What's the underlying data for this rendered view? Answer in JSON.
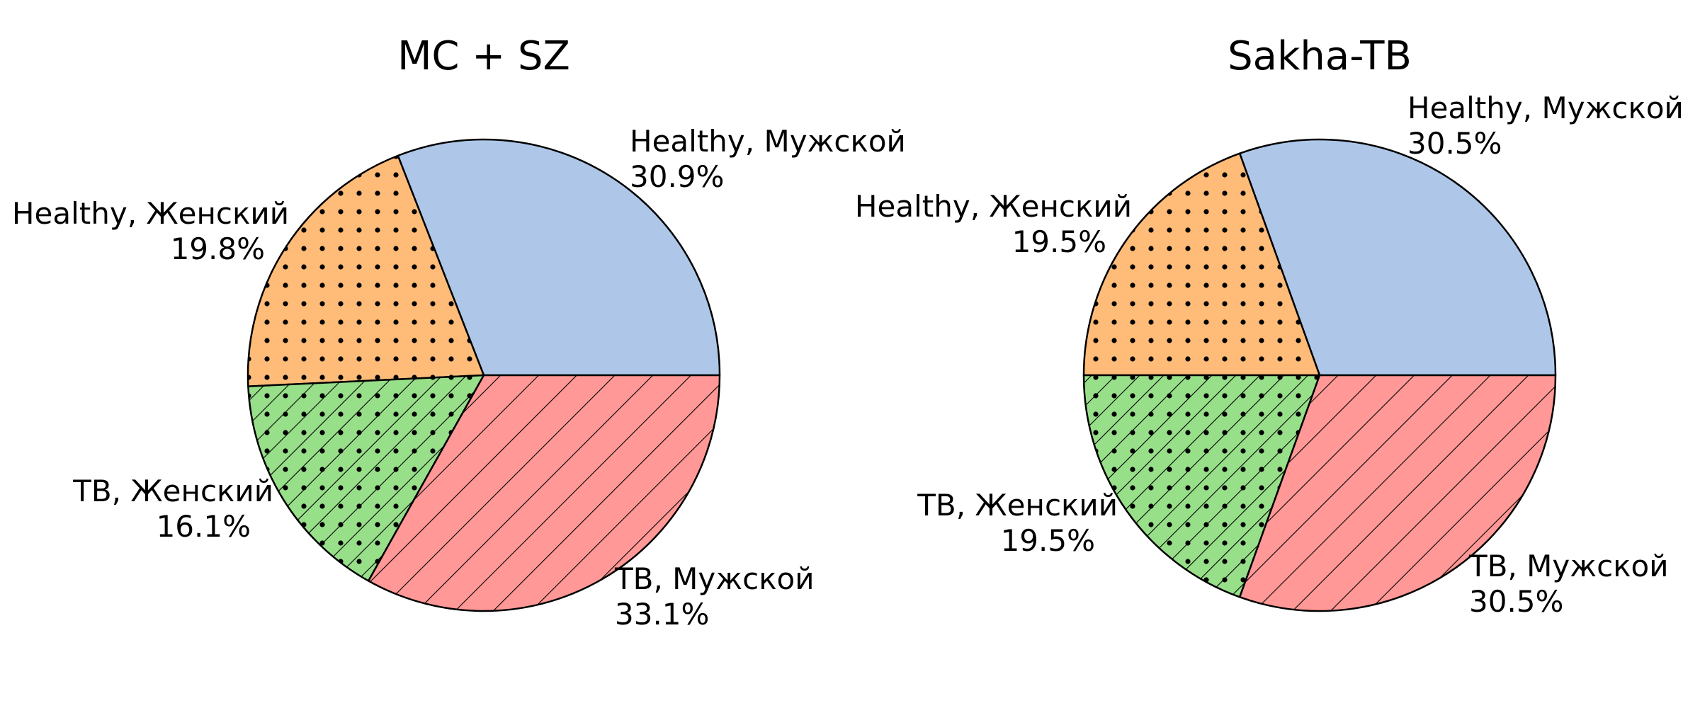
{
  "chart_data": [
    {
      "type": "pie",
      "title": "MC + SZ",
      "slices": [
        {
          "label": "Healthy, Мужской",
          "percent": "30.9%",
          "value": 30.9,
          "color": "#aec7e8",
          "hatch": "none"
        },
        {
          "label": "Healthy, Женский",
          "percent": "19.8%",
          "value": 19.8,
          "color": "#ffbb78",
          "hatch": "dots"
        },
        {
          "label": "TB, Женский",
          "percent": "16.1%",
          "value": 16.1,
          "color": "#98df8a",
          "hatch": "dots-diag"
        },
        {
          "label": "TB, Мужской",
          "percent": "33.1%",
          "value": 33.1,
          "color": "#ff9896",
          "hatch": "diag"
        }
      ]
    },
    {
      "type": "pie",
      "title": "Sakha-TB",
      "slices": [
        {
          "label": "Healthy, Мужской",
          "percent": "30.5%",
          "value": 30.5,
          "color": "#aec7e8",
          "hatch": "none"
        },
        {
          "label": "Healthy, Женский",
          "percent": "19.5%",
          "value": 19.5,
          "color": "#ffbb78",
          "hatch": "dots"
        },
        {
          "label": "TB, Женский",
          "percent": "19.5%",
          "value": 19.5,
          "color": "#98df8a",
          "hatch": "dots-diag"
        },
        {
          "label": "TB, Мужской",
          "percent": "30.5%",
          "value": 30.5,
          "color": "#ff9896",
          "hatch": "diag"
        }
      ]
    }
  ]
}
